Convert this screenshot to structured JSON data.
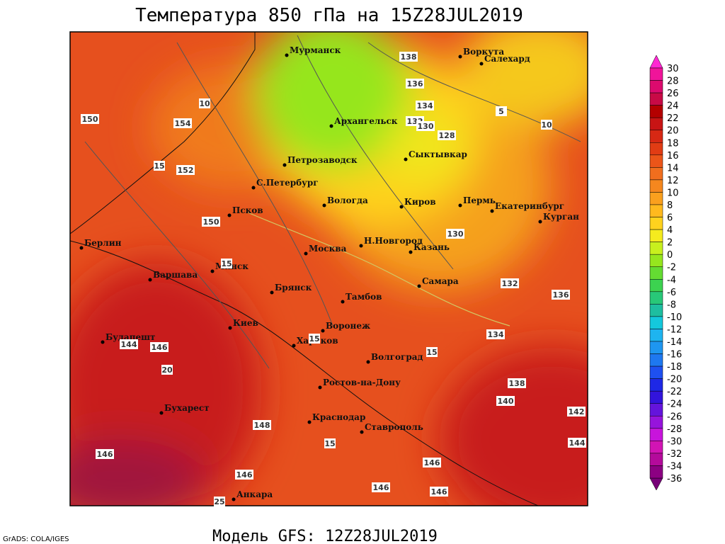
{
  "title": "Температура 850 гПа на 15Z28JUL2019",
  "footer": "Модель GFS: 12Z28JUL2019",
  "credit": "GrADS: COLA/IGES",
  "cities": [
    "Мурманск",
    "Воркута",
    "Салехард",
    "Архангельск",
    "Петрозаводск",
    "Сыктывкар",
    "С.Петербург",
    "Вологда",
    "Киров",
    "Пермь",
    "Екатеринбург",
    "Курган",
    "Псков",
    "Берлин",
    "Н.Новгород",
    "Москва",
    "Казань",
    "Минск",
    "Варшава",
    "Самара",
    "Брянск",
    "Тамбов",
    "Киев",
    "Воронеж",
    "Будапешт",
    "Харьков",
    "Волгоград",
    "Ростов-на-Дону",
    "Бухарест",
    "Краснодар",
    "Ставрополь",
    "Анкара"
  ],
  "contour_labels": [
    150,
    154,
    152,
    150,
    138,
    136,
    134,
    132,
    130,
    128,
    130,
    132,
    136,
    134,
    138,
    140,
    142,
    144,
    146,
    144,
    148,
    146,
    146,
    146,
    146,
    146
  ],
  "temperature_labels": [
    15,
    10,
    5,
    10,
    15,
    15,
    20,
    25,
    15,
    15
  ],
  "colorbar": {
    "levels": [
      30,
      28,
      26,
      24,
      22,
      20,
      18,
      16,
      14,
      12,
      10,
      8,
      6,
      4,
      2,
      0,
      -2,
      -4,
      -6,
      -8,
      -10,
      -12,
      -14,
      -16,
      -18,
      -20,
      -22,
      -24,
      -26,
      -28,
      -30,
      -32,
      -34,
      -36
    ],
    "colors": [
      "#f0149a",
      "#dc0a6e",
      "#c80a46",
      "#b40000",
      "#c81414",
      "#d72814",
      "#e13c14",
      "#eb5519",
      "#f06e1e",
      "#f5871e",
      "#faa01e",
      "#ffb91e",
      "#ffd21e",
      "#f5eb1e",
      "#c8f01e",
      "#96e61e",
      "#64dc32",
      "#3cd250",
      "#28c878",
      "#1ebea0",
      "#14c8dc",
      "#1eb4f0",
      "#1e96f0",
      "#1e78f0",
      "#1e50f0",
      "#1e28e6",
      "#3214dc",
      "#6414dc",
      "#9614dc",
      "#c814dc",
      "#d214b4",
      "#b40a9b",
      "#8c0082"
    ]
  }
}
